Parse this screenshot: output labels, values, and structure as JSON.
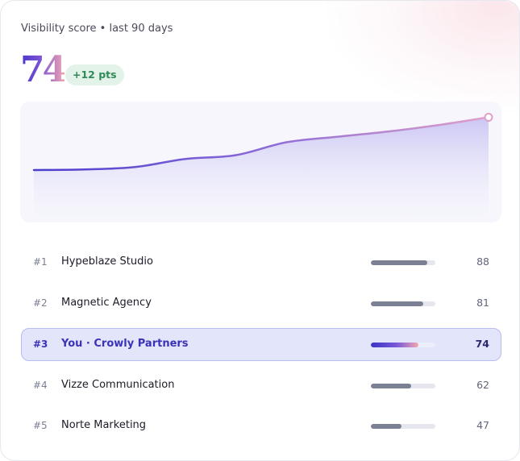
{
  "header": {
    "subtitle": "Visibility score • last 90 days",
    "score": "74",
    "delta_badge": "+12 pts"
  },
  "chart_data": {
    "type": "area",
    "x": [
      0,
      10,
      20,
      30,
      40,
      50,
      60,
      70,
      80,
      90
    ],
    "values": [
      46,
      46.3,
      47.5,
      51.5,
      53.4,
      59.8,
      62.5,
      65.1,
      68.3,
      72.2
    ],
    "ylim": [
      20,
      80
    ],
    "grid": false,
    "colors": {
      "line_start": "#5545d0",
      "line_end": "#d99ac6",
      "fill": "#cfcaf4"
    }
  },
  "leaderboard": [
    {
      "rank": "#1",
      "name": "Hypeblaze Studio",
      "score": "88",
      "fraction": 0.88,
      "is_you": false
    },
    {
      "rank": "#2",
      "name": "Magnetic Agency",
      "score": "81",
      "fraction": 0.81,
      "is_you": false
    },
    {
      "rank": "#3",
      "name": "You · Crowly Partners",
      "score": "74",
      "fraction": 0.74,
      "is_you": true
    },
    {
      "rank": "#4",
      "name": "Vizze Communication",
      "score": "62",
      "fraction": 0.62,
      "is_you": false
    },
    {
      "rank": "#5",
      "name": "Norte Marketing",
      "score": "47",
      "fraction": 0.47,
      "is_you": false
    }
  ]
}
